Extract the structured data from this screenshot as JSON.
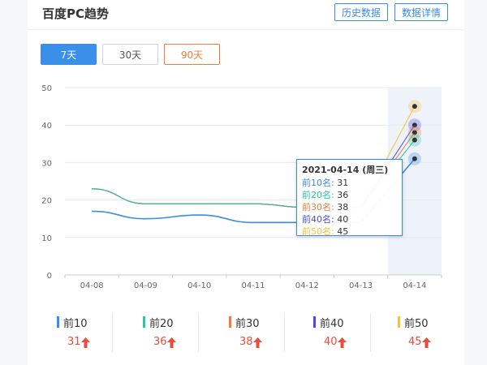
{
  "header": {
    "title": "百度PC趋势",
    "history_button": "历史数据",
    "detail_button": "数据详情"
  },
  "ranges": [
    {
      "label": "7天",
      "state": "active"
    },
    {
      "label": "30天",
      "state": "plain"
    },
    {
      "label": "90天",
      "state": "warn"
    }
  ],
  "tooltip": {
    "date": "2021-04-14 (周三)",
    "rows": [
      {
        "label": "前10名:",
        "value": "31",
        "color": "#3b8be8"
      },
      {
        "label": "前20名:",
        "value": "36",
        "color": "#2ec4a4"
      },
      {
        "label": "前30名:",
        "value": "38",
        "color": "#ee7d38"
      },
      {
        "label": "前40名:",
        "value": "40",
        "color": "#4b4be0"
      },
      {
        "label": "前50名:",
        "value": "45",
        "color": "#f5c23a"
      }
    ]
  },
  "stats": [
    {
      "label": "前10",
      "value": "31",
      "color": "#3b8be8"
    },
    {
      "label": "前20",
      "value": "36",
      "color": "#2ec4a4"
    },
    {
      "label": "前30",
      "value": "38",
      "color": "#ee7d38"
    },
    {
      "label": "前40",
      "value": "40",
      "color": "#4b4be0"
    },
    {
      "label": "前50",
      "value": "45",
      "color": "#f5c23a"
    }
  ],
  "chart_data": {
    "type": "line",
    "x": [
      "04-08",
      "04-09",
      "04-10",
      "04-11",
      "04-12",
      "04-13",
      "04-14"
    ],
    "ylim": [
      0,
      50
    ],
    "yticks": [
      0,
      10,
      20,
      30,
      40,
      50
    ],
    "highlight_index": 6,
    "series": [
      {
        "name": "前10",
        "color": "#3b8be8",
        "values": [
          17,
          15,
          16,
          14,
          14,
          14,
          31
        ]
      },
      {
        "name": "前20",
        "color": "#2ec4a4",
        "values": [
          23,
          19,
          19,
          19,
          18,
          18,
          36
        ]
      },
      {
        "name": "前30",
        "color": "#ee7d38",
        "values": [
          23,
          19,
          19,
          19,
          18,
          18,
          38
        ]
      },
      {
        "name": "前40",
        "color": "#4b4be0",
        "values": [
          23,
          19,
          19,
          19,
          18,
          18,
          40
        ]
      },
      {
        "name": "前50",
        "color": "#f5c23a",
        "values": [
          23,
          19,
          19,
          19,
          18,
          18,
          45
        ]
      }
    ]
  }
}
